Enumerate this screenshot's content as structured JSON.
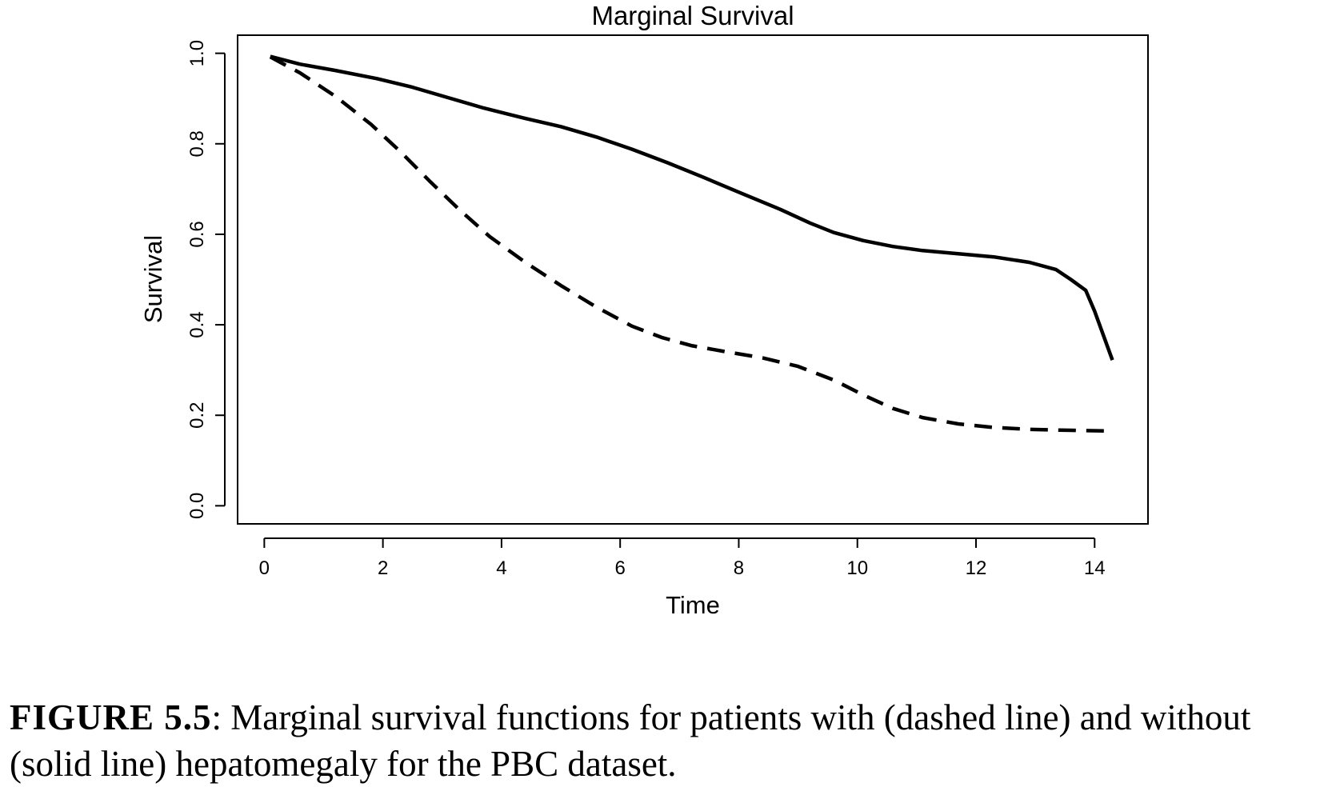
{
  "chart_data": {
    "type": "line",
    "title": "Marginal Survival",
    "xlabel": "Time",
    "ylabel": "Survival",
    "xlim": [
      -0.45,
      14.9
    ],
    "ylim": [
      -0.04,
      1.04
    ],
    "x_ticks": [
      "0",
      "2",
      "4",
      "6",
      "8",
      "10",
      "12",
      "14"
    ],
    "y_ticks": [
      "0.0",
      "0.2",
      "0.4",
      "0.6",
      "0.8",
      "1.0"
    ],
    "grid": false,
    "legend": "none",
    "series": [
      {
        "style": "solid",
        "color": "#000000",
        "points": [
          [
            0.1,
            0.993
          ],
          [
            0.6,
            0.976
          ],
          [
            1.2,
            0.962
          ],
          [
            1.9,
            0.944
          ],
          [
            2.5,
            0.925
          ],
          [
            3.1,
            0.902
          ],
          [
            3.7,
            0.879
          ],
          [
            4.4,
            0.856
          ],
          [
            5.0,
            0.838
          ],
          [
            5.6,
            0.815
          ],
          [
            6.2,
            0.788
          ],
          [
            6.8,
            0.758
          ],
          [
            7.4,
            0.726
          ],
          [
            8.0,
            0.693
          ],
          [
            8.7,
            0.655
          ],
          [
            9.2,
            0.625
          ],
          [
            9.6,
            0.604
          ],
          [
            10.1,
            0.586
          ],
          [
            10.6,
            0.573
          ],
          [
            11.1,
            0.564
          ],
          [
            11.7,
            0.557
          ],
          [
            12.3,
            0.55
          ],
          [
            12.9,
            0.538
          ],
          [
            13.35,
            0.522
          ],
          [
            13.6,
            0.5
          ],
          [
            13.85,
            0.476
          ],
          [
            14.0,
            0.43
          ],
          [
            14.3,
            0.322
          ]
        ]
      },
      {
        "style": "dashed",
        "color": "#000000",
        "points": [
          [
            0.1,
            0.992
          ],
          [
            0.6,
            0.957
          ],
          [
            1.2,
            0.905
          ],
          [
            1.8,
            0.843
          ],
          [
            2.3,
            0.782
          ],
          [
            2.8,
            0.716
          ],
          [
            3.3,
            0.653
          ],
          [
            3.8,
            0.595
          ],
          [
            4.4,
            0.538
          ],
          [
            5.0,
            0.487
          ],
          [
            5.6,
            0.439
          ],
          [
            6.2,
            0.397
          ],
          [
            6.7,
            0.372
          ],
          [
            7.2,
            0.354
          ],
          [
            7.8,
            0.34
          ],
          [
            8.4,
            0.327
          ],
          [
            9.0,
            0.308
          ],
          [
            9.6,
            0.278
          ],
          [
            10.1,
            0.245
          ],
          [
            10.6,
            0.215
          ],
          [
            11.1,
            0.195
          ],
          [
            11.7,
            0.181
          ],
          [
            12.3,
            0.173
          ],
          [
            12.9,
            0.169
          ],
          [
            13.5,
            0.167
          ],
          [
            14.3,
            0.165
          ]
        ]
      }
    ]
  },
  "caption": {
    "label": "FIGURE 5.5",
    "text": ": Marginal survival functions for patients with (dashed line) and without (solid line) hepatomegaly for the PBC dataset."
  }
}
